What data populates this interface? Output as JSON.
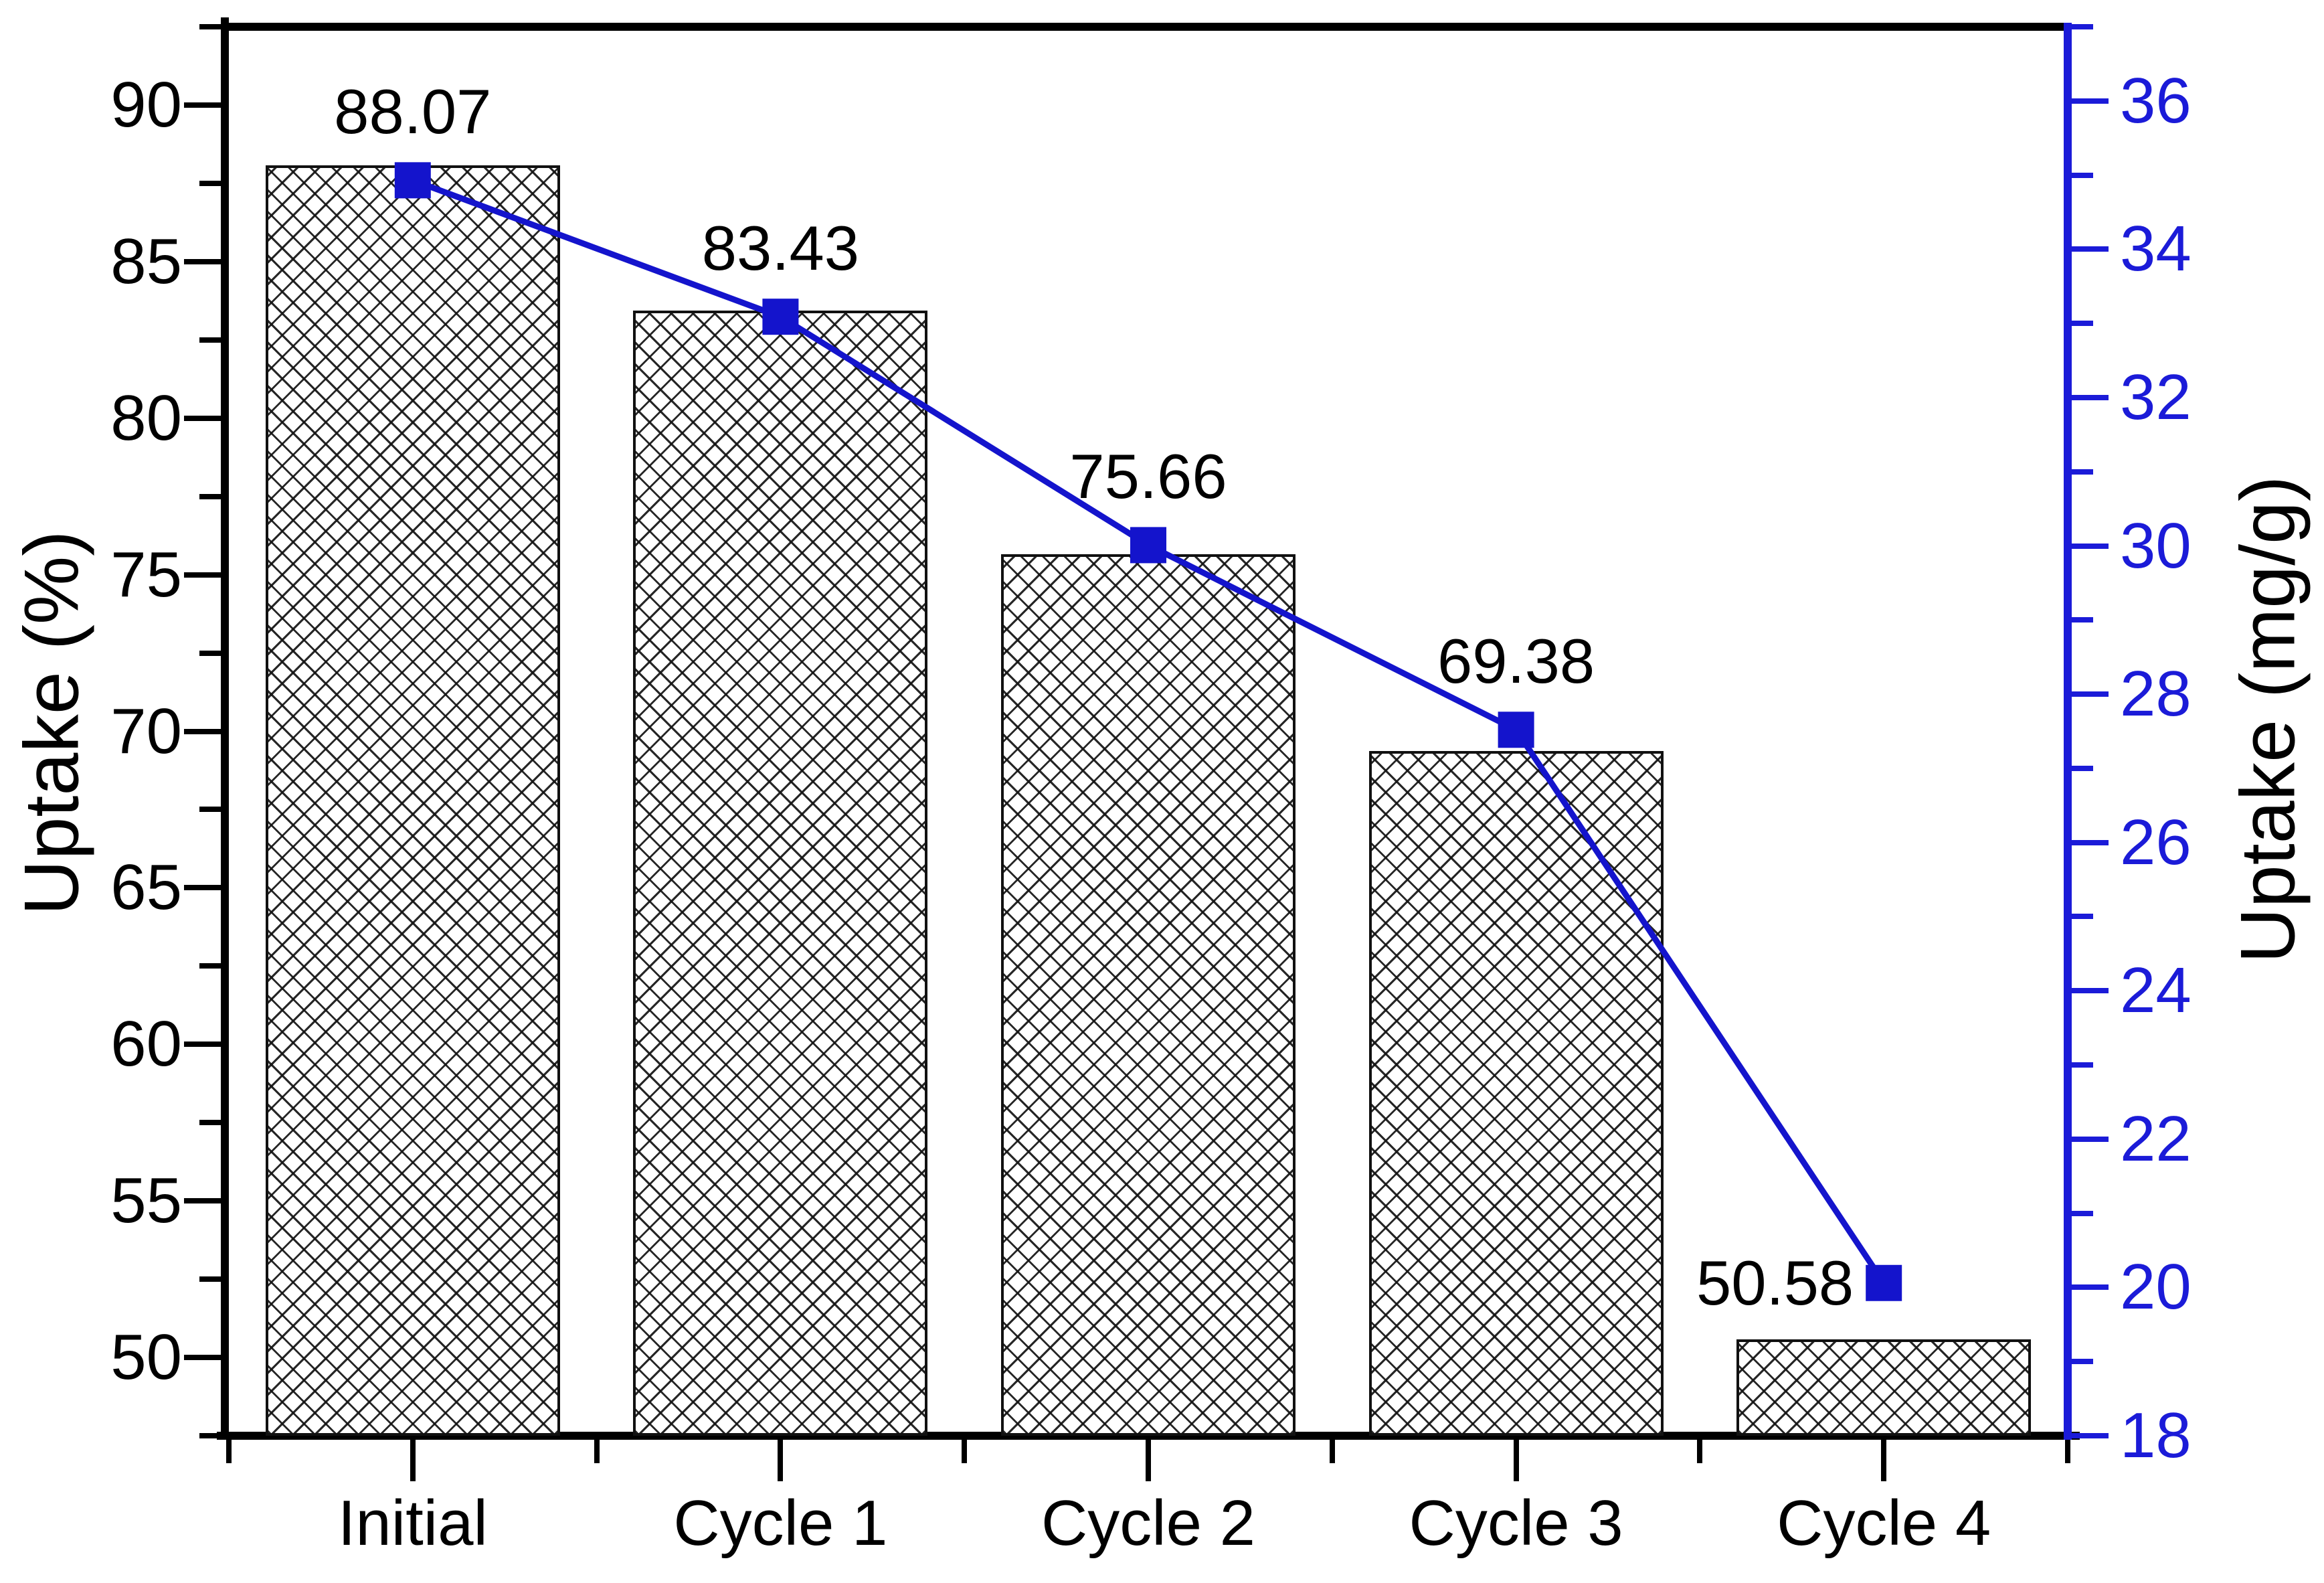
{
  "chart_data": {
    "type": "bar",
    "subtype": "bar-with-line-overlay-dual-axis",
    "categories": [
      "Initial",
      "Cycle 1",
      "Cycle 2",
      "Cycle 3",
      "Cycle 4"
    ],
    "series": [
      {
        "name": "Uptake (%)",
        "type": "bar",
        "axis": "left",
        "values": [
          88.07,
          83.43,
          75.66,
          69.38,
          50.58
        ],
        "value_labels": [
          "88.07",
          "83.43",
          "75.66",
          "69.38",
          "50.58"
        ],
        "fill": "#ffffff",
        "hatch": "diagonal-crosshatch",
        "border_color": "#111111"
      },
      {
        "name": "Uptake (mg/g)",
        "type": "line",
        "axis": "right",
        "values": [
          34.93,
          33.09,
          30.01,
          27.52,
          20.06
        ],
        "marker": "filled-square",
        "color": "#1414cc"
      }
    ],
    "title": "",
    "xlabel": "",
    "ylabel_left": "Uptake (%)",
    "ylabel_right": "Uptake (mg/g)",
    "ylim_left": [
      47.5,
      92.5
    ],
    "ylim_right": [
      18,
      37
    ],
    "yticks_left": [
      50,
      55,
      60,
      65,
      70,
      75,
      80,
      85,
      90
    ],
    "yticks_right": [
      18,
      20,
      22,
      24,
      26,
      28,
      30,
      32,
      34,
      36
    ],
    "minor_step_left": 2.5,
    "minor_step_right": 1,
    "grid": false,
    "legend": null,
    "colors": {
      "line": "#1414cc",
      "right_axis": "#1b1bd8",
      "left_axis": "#000000",
      "text": "#000000",
      "background": "#ffffff"
    }
  }
}
